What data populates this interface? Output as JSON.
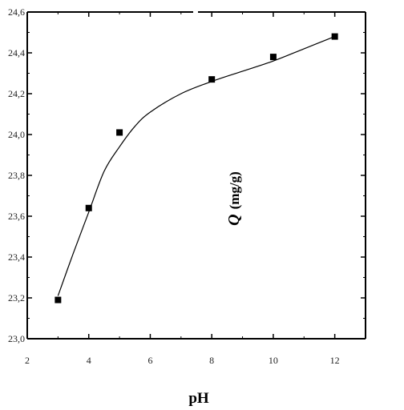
{
  "chart_data": {
    "type": "scatter",
    "xlabel": "pH",
    "ylabel_symbol": "Q",
    "ylabel_unit": "(mg/g)",
    "xlim": [
      2,
      13
    ],
    "ylim": [
      23.0,
      24.6
    ],
    "x_ticks": [
      "2",
      "4",
      "6",
      "8",
      "10",
      "12"
    ],
    "y_ticks": [
      "23,0",
      "23,2",
      "23,4",
      "23,6",
      "23,8",
      "24,0",
      "24,2",
      "24,4",
      "24,6"
    ],
    "series": [
      {
        "marker": "square",
        "color": "#000000",
        "x": [
          3,
          4,
          5,
          8,
          10,
          12
        ],
        "y": [
          23.19,
          23.64,
          24.01,
          24.27,
          24.38,
          24.48
        ]
      }
    ],
    "fit_curve": {
      "color": "#000000",
      "x": [
        3,
        3.5,
        4,
        4.5,
        5,
        5.5,
        6,
        7,
        8,
        9,
        10,
        11,
        12
      ],
      "y": [
        23.21,
        23.42,
        23.62,
        23.82,
        23.94,
        24.04,
        24.11,
        24.2,
        24.26,
        24.31,
        24.36,
        24.42,
        24.48
      ]
    },
    "grid": false,
    "legend": "none"
  }
}
